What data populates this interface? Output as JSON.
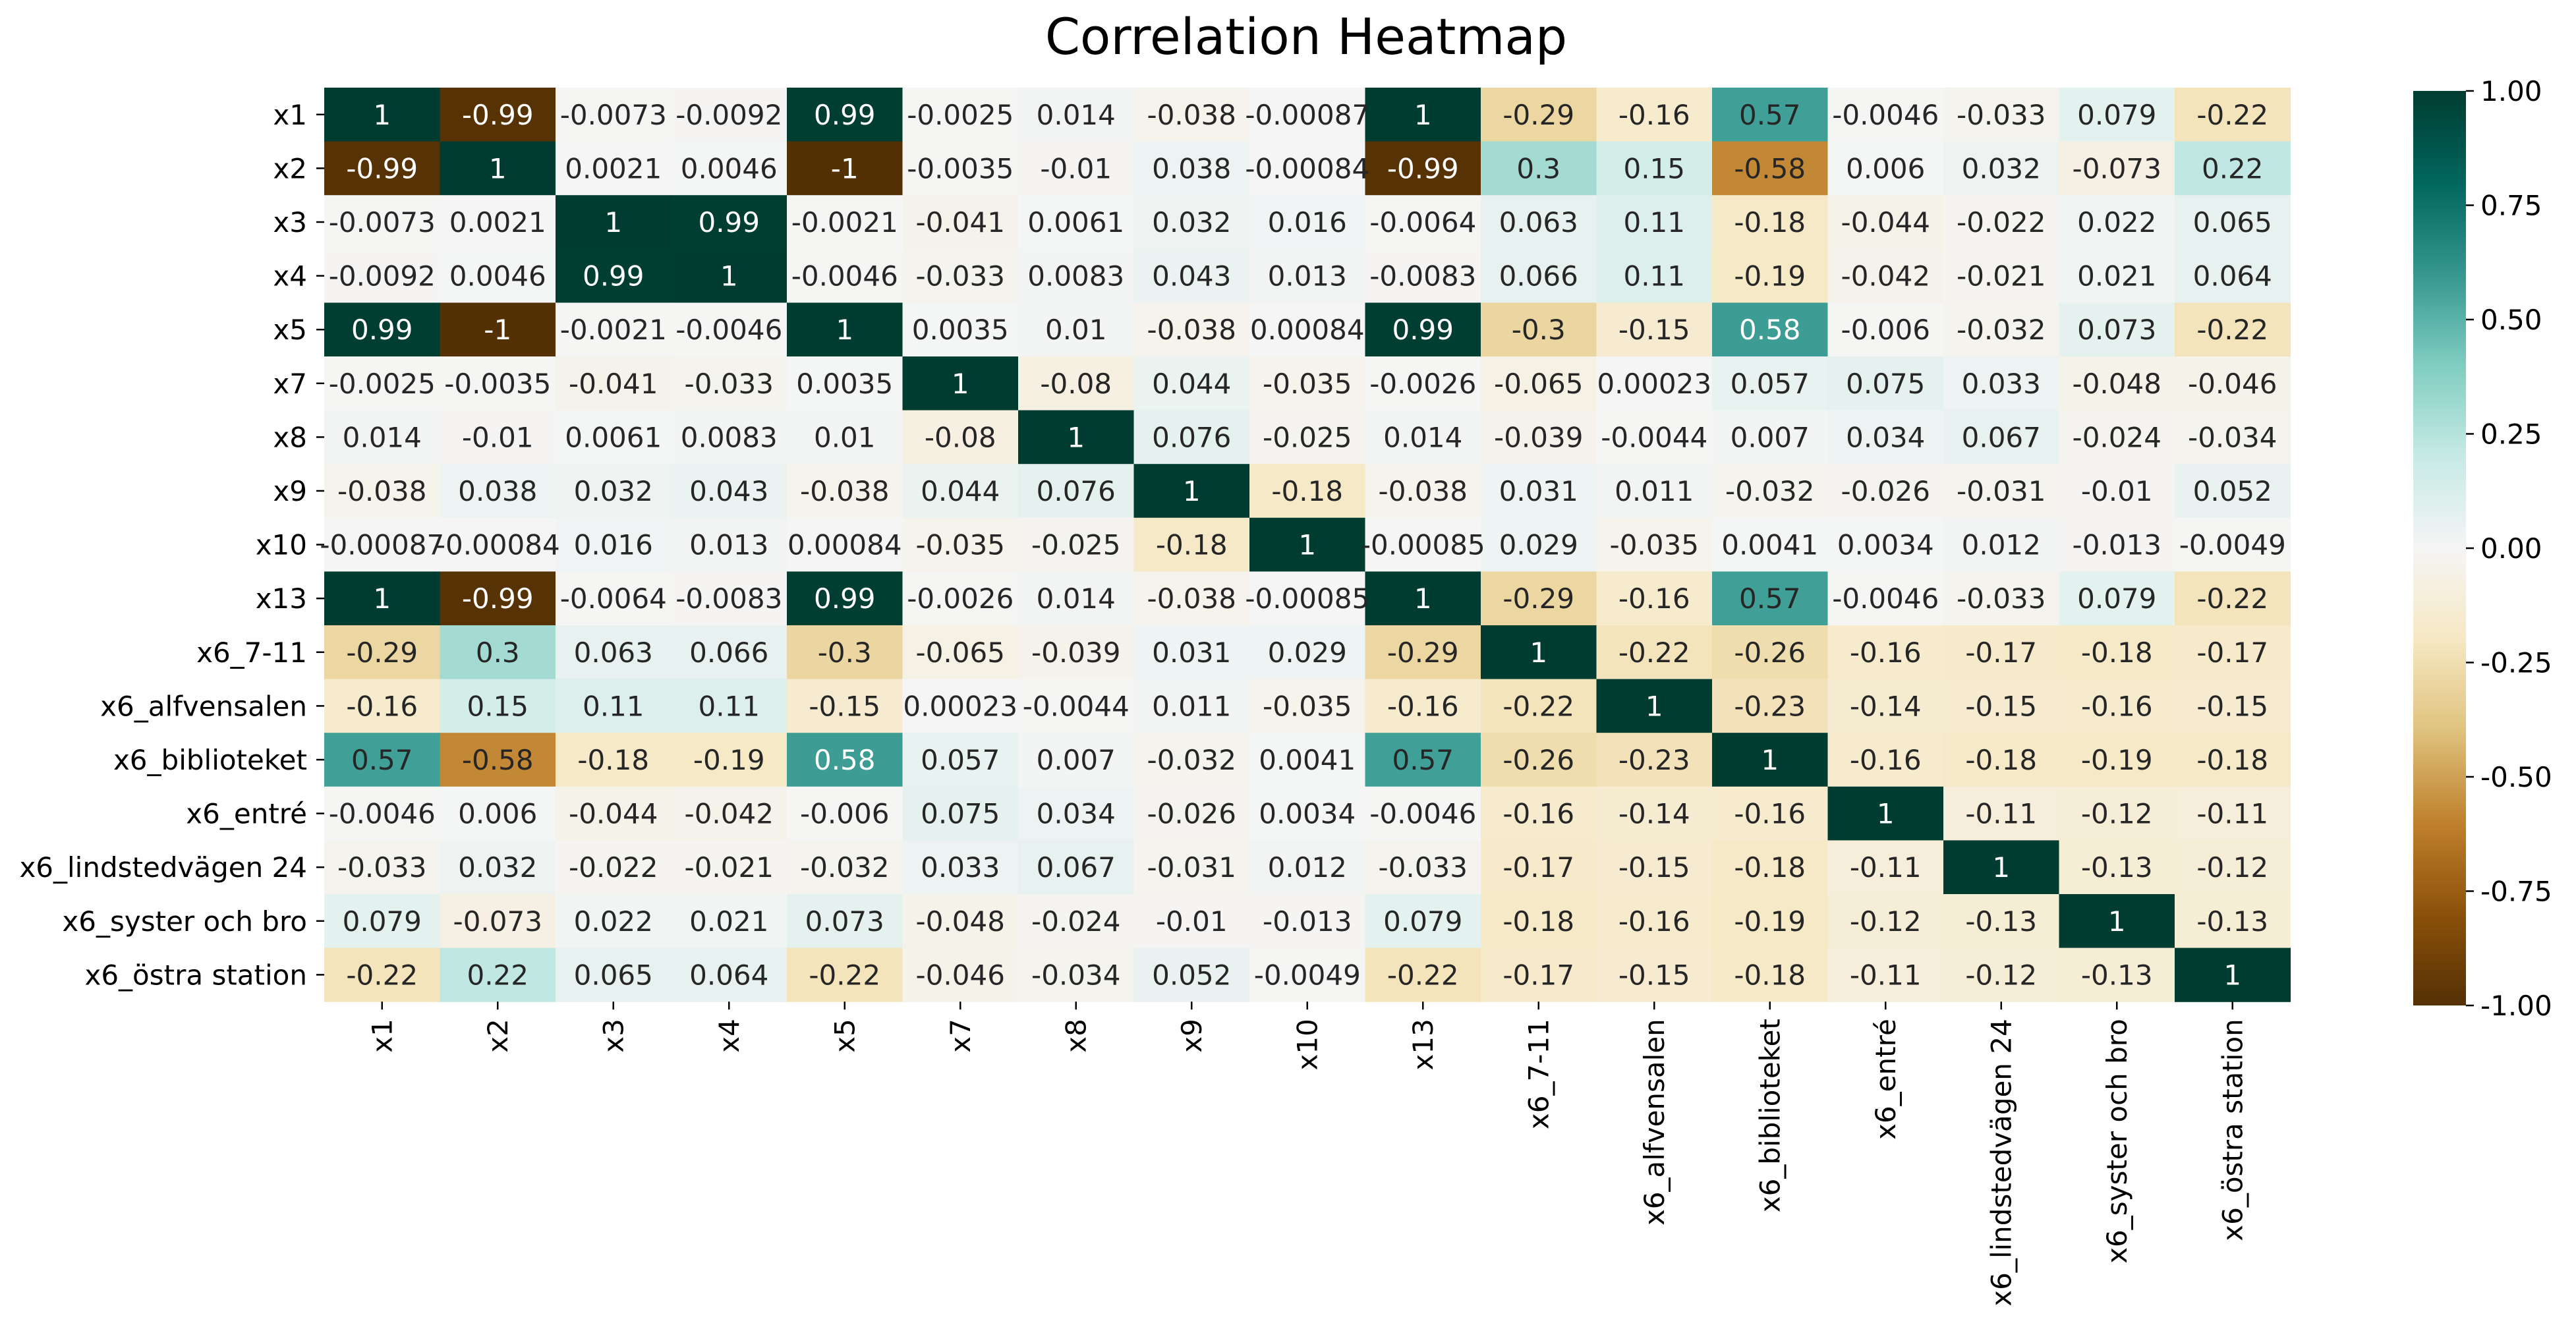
{
  "chart_data": {
    "type": "heatmap",
    "title": "Correlation Heatmap",
    "xlabel": "",
    "ylabel": "",
    "labels": [
      "x1",
      "x2",
      "x3",
      "x4",
      "x5",
      "x7",
      "x8",
      "x9",
      "x10",
      "x13",
      "x6_7-11",
      "x6_alfvensalen",
      "x6_biblioteket",
      "x6_entré",
      "x6_lindstedvägen 24",
      "x6_syster och bro",
      "x6_östra station"
    ],
    "matrix": [
      [
        "1",
        "-0.99",
        "-0.0073",
        "-0.0092",
        "0.99",
        "-0.0025",
        "0.014",
        "-0.038",
        "-0.00087",
        "1",
        "-0.29",
        "-0.16",
        "0.57",
        "-0.0046",
        "-0.033",
        "0.079",
        "-0.22"
      ],
      [
        "-0.99",
        "1",
        "0.0021",
        "0.0046",
        "-1",
        "-0.0035",
        "-0.01",
        "0.038",
        "-0.00084",
        "-0.99",
        "0.3",
        "0.15",
        "-0.58",
        "0.006",
        "0.032",
        "-0.073",
        "0.22"
      ],
      [
        "-0.0073",
        "0.0021",
        "1",
        "0.99",
        "-0.0021",
        "-0.041",
        "0.0061",
        "0.032",
        "0.016",
        "-0.0064",
        "0.063",
        "0.11",
        "-0.18",
        "-0.044",
        "-0.022",
        "0.022",
        "0.065"
      ],
      [
        "-0.0092",
        "0.0046",
        "0.99",
        "1",
        "-0.0046",
        "-0.033",
        "0.0083",
        "0.043",
        "0.013",
        "-0.0083",
        "0.066",
        "0.11",
        "-0.19",
        "-0.042",
        "-0.021",
        "0.021",
        "0.064"
      ],
      [
        "0.99",
        "-1",
        "-0.0021",
        "-0.0046",
        "1",
        "0.0035",
        "0.01",
        "-0.038",
        "0.00084",
        "0.99",
        "-0.3",
        "-0.15",
        "0.58",
        "-0.006",
        "-0.032",
        "0.073",
        "-0.22"
      ],
      [
        "-0.0025",
        "-0.0035",
        "-0.041",
        "-0.033",
        "0.0035",
        "1",
        "-0.08",
        "0.044",
        "-0.035",
        "-0.0026",
        "-0.065",
        "0.00023",
        "0.057",
        "0.075",
        "0.033",
        "-0.048",
        "-0.046"
      ],
      [
        "0.014",
        "-0.01",
        "0.0061",
        "0.0083",
        "0.01",
        "-0.08",
        "1",
        "0.076",
        "-0.025",
        "0.014",
        "-0.039",
        "-0.0044",
        "0.007",
        "0.034",
        "0.067",
        "-0.024",
        "-0.034"
      ],
      [
        "-0.038",
        "0.038",
        "0.032",
        "0.043",
        "-0.038",
        "0.044",
        "0.076",
        "1",
        "-0.18",
        "-0.038",
        "0.031",
        "0.011",
        "-0.032",
        "-0.026",
        "-0.031",
        "-0.01",
        "0.052"
      ],
      [
        "-0.00087",
        "-0.00084",
        "0.016",
        "0.013",
        "0.00084",
        "-0.035",
        "-0.025",
        "-0.18",
        "1",
        "-0.00085",
        "0.029",
        "-0.035",
        "0.0041",
        "0.0034",
        "0.012",
        "-0.013",
        "-0.0049"
      ],
      [
        "1",
        "-0.99",
        "-0.0064",
        "-0.0083",
        "0.99",
        "-0.0026",
        "0.014",
        "-0.038",
        "-0.00085",
        "1",
        "-0.29",
        "-0.16",
        "0.57",
        "-0.0046",
        "-0.033",
        "0.079",
        "-0.22"
      ],
      [
        "-0.29",
        "0.3",
        "0.063",
        "0.066",
        "-0.3",
        "-0.065",
        "-0.039",
        "0.031",
        "0.029",
        "-0.29",
        "1",
        "-0.22",
        "-0.26",
        "-0.16",
        "-0.17",
        "-0.18",
        "-0.17"
      ],
      [
        "-0.16",
        "0.15",
        "0.11",
        "0.11",
        "-0.15",
        "0.00023",
        "-0.0044",
        "0.011",
        "-0.035",
        "-0.16",
        "-0.22",
        "1",
        "-0.23",
        "-0.14",
        "-0.15",
        "-0.16",
        "-0.15"
      ],
      [
        "0.57",
        "-0.58",
        "-0.18",
        "-0.19",
        "0.58",
        "0.057",
        "0.007",
        "-0.032",
        "0.0041",
        "0.57",
        "-0.26",
        "-0.23",
        "1",
        "-0.16",
        "-0.18",
        "-0.19",
        "-0.18"
      ],
      [
        "-0.0046",
        "0.006",
        "-0.044",
        "-0.042",
        "-0.006",
        "0.075",
        "0.034",
        "-0.026",
        "0.0034",
        "-0.0046",
        "-0.16",
        "-0.14",
        "-0.16",
        "1",
        "-0.11",
        "-0.12",
        "-0.11"
      ],
      [
        "-0.033",
        "0.032",
        "-0.022",
        "-0.021",
        "-0.032",
        "0.033",
        "0.067",
        "-0.031",
        "0.012",
        "-0.033",
        "-0.17",
        "-0.15",
        "-0.18",
        "-0.11",
        "1",
        "-0.13",
        "-0.12"
      ],
      [
        "0.079",
        "-0.073",
        "0.022",
        "0.021",
        "0.073",
        "-0.048",
        "-0.024",
        "-0.01",
        "-0.013",
        "0.079",
        "-0.18",
        "-0.16",
        "-0.19",
        "-0.12",
        "-0.13",
        "1",
        "-0.13"
      ],
      [
        "-0.22",
        "0.22",
        "0.065",
        "0.064",
        "-0.22",
        "-0.046",
        "-0.034",
        "0.052",
        "-0.0049",
        "-0.22",
        "-0.17",
        "-0.15",
        "-0.18",
        "-0.11",
        "-0.12",
        "-0.13",
        "1"
      ]
    ],
    "colormap": "BrBG",
    "vmin": -1.0,
    "vmax": 1.0,
    "colorbar_ticks": [
      "-1.00",
      "-0.75",
      "-0.50",
      "-0.25",
      "0.00",
      "0.25",
      "0.50",
      "0.75",
      "1.00"
    ],
    "colorbar_tick_values": [
      -1.0,
      -0.75,
      -0.5,
      -0.25,
      0.0,
      0.25,
      0.5,
      0.75,
      1.0
    ]
  }
}
